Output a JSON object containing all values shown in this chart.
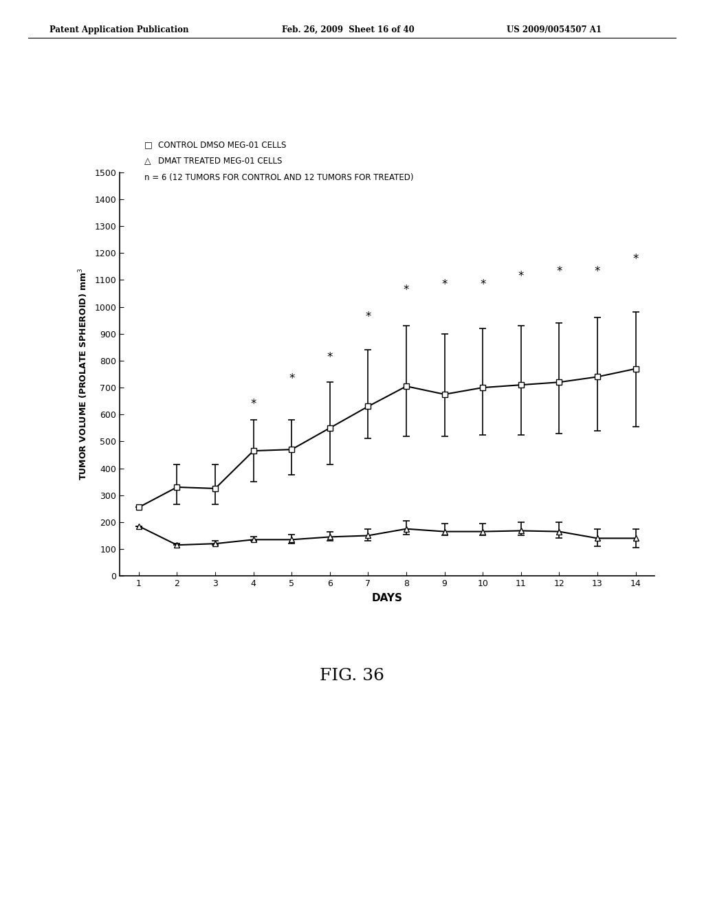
{
  "days": [
    1,
    2,
    3,
    4,
    5,
    6,
    7,
    8,
    9,
    10,
    11,
    12,
    13,
    14
  ],
  "control_mean": [
    255,
    330,
    325,
    465,
    470,
    550,
    630,
    705,
    675,
    700,
    710,
    720,
    740,
    770
  ],
  "control_err_low": [
    255,
    265,
    265,
    350,
    375,
    415,
    510,
    520,
    520,
    525,
    525,
    530,
    540,
    555
  ],
  "control_err_high": [
    255,
    415,
    415,
    580,
    580,
    720,
    840,
    930,
    900,
    920,
    930,
    940,
    960,
    980
  ],
  "treated_mean": [
    185,
    115,
    120,
    135,
    135,
    145,
    150,
    175,
    165,
    165,
    168,
    165,
    140,
    140
  ],
  "treated_err_low": [
    185,
    115,
    115,
    130,
    120,
    130,
    130,
    155,
    150,
    150,
    150,
    140,
    110,
    105
  ],
  "treated_err_high": [
    185,
    120,
    130,
    145,
    155,
    165,
    175,
    205,
    195,
    195,
    200,
    200,
    175,
    175
  ],
  "asterisk_days": [
    4,
    5,
    6,
    7,
    8,
    9,
    10,
    11,
    12,
    13,
    14
  ],
  "asterisk_y": [
    615,
    710,
    790,
    940,
    1040,
    1060,
    1060,
    1090,
    1110,
    1110,
    1155
  ],
  "ylabel": "TUMOR VOLUME (PROLATE SPHEROID) mm$^3$",
  "xlabel": "DAYS",
  "legend_line1": "CONTROL DMSO MEG-01 CELLS",
  "legend_line2": "DMAT TREATED MEG-01 CELLS",
  "legend_line3": "n = 6 (12 TUMORS FOR CONTROL AND 12 TUMORS FOR TREATED)",
  "fig_label": "FIG. 36",
  "header_left": "Patent Application Publication",
  "header_center": "Feb. 26, 2009  Sheet 16 of 40",
  "header_right": "US 2009/0054507 A1",
  "yticks": [
    0,
    100,
    200,
    300,
    400,
    500,
    600,
    700,
    800,
    900,
    1000,
    1100,
    1200,
    1300,
    1400,
    1500
  ],
  "ylim": [
    0,
    1500
  ],
  "xlim": [
    0.5,
    14.5
  ]
}
